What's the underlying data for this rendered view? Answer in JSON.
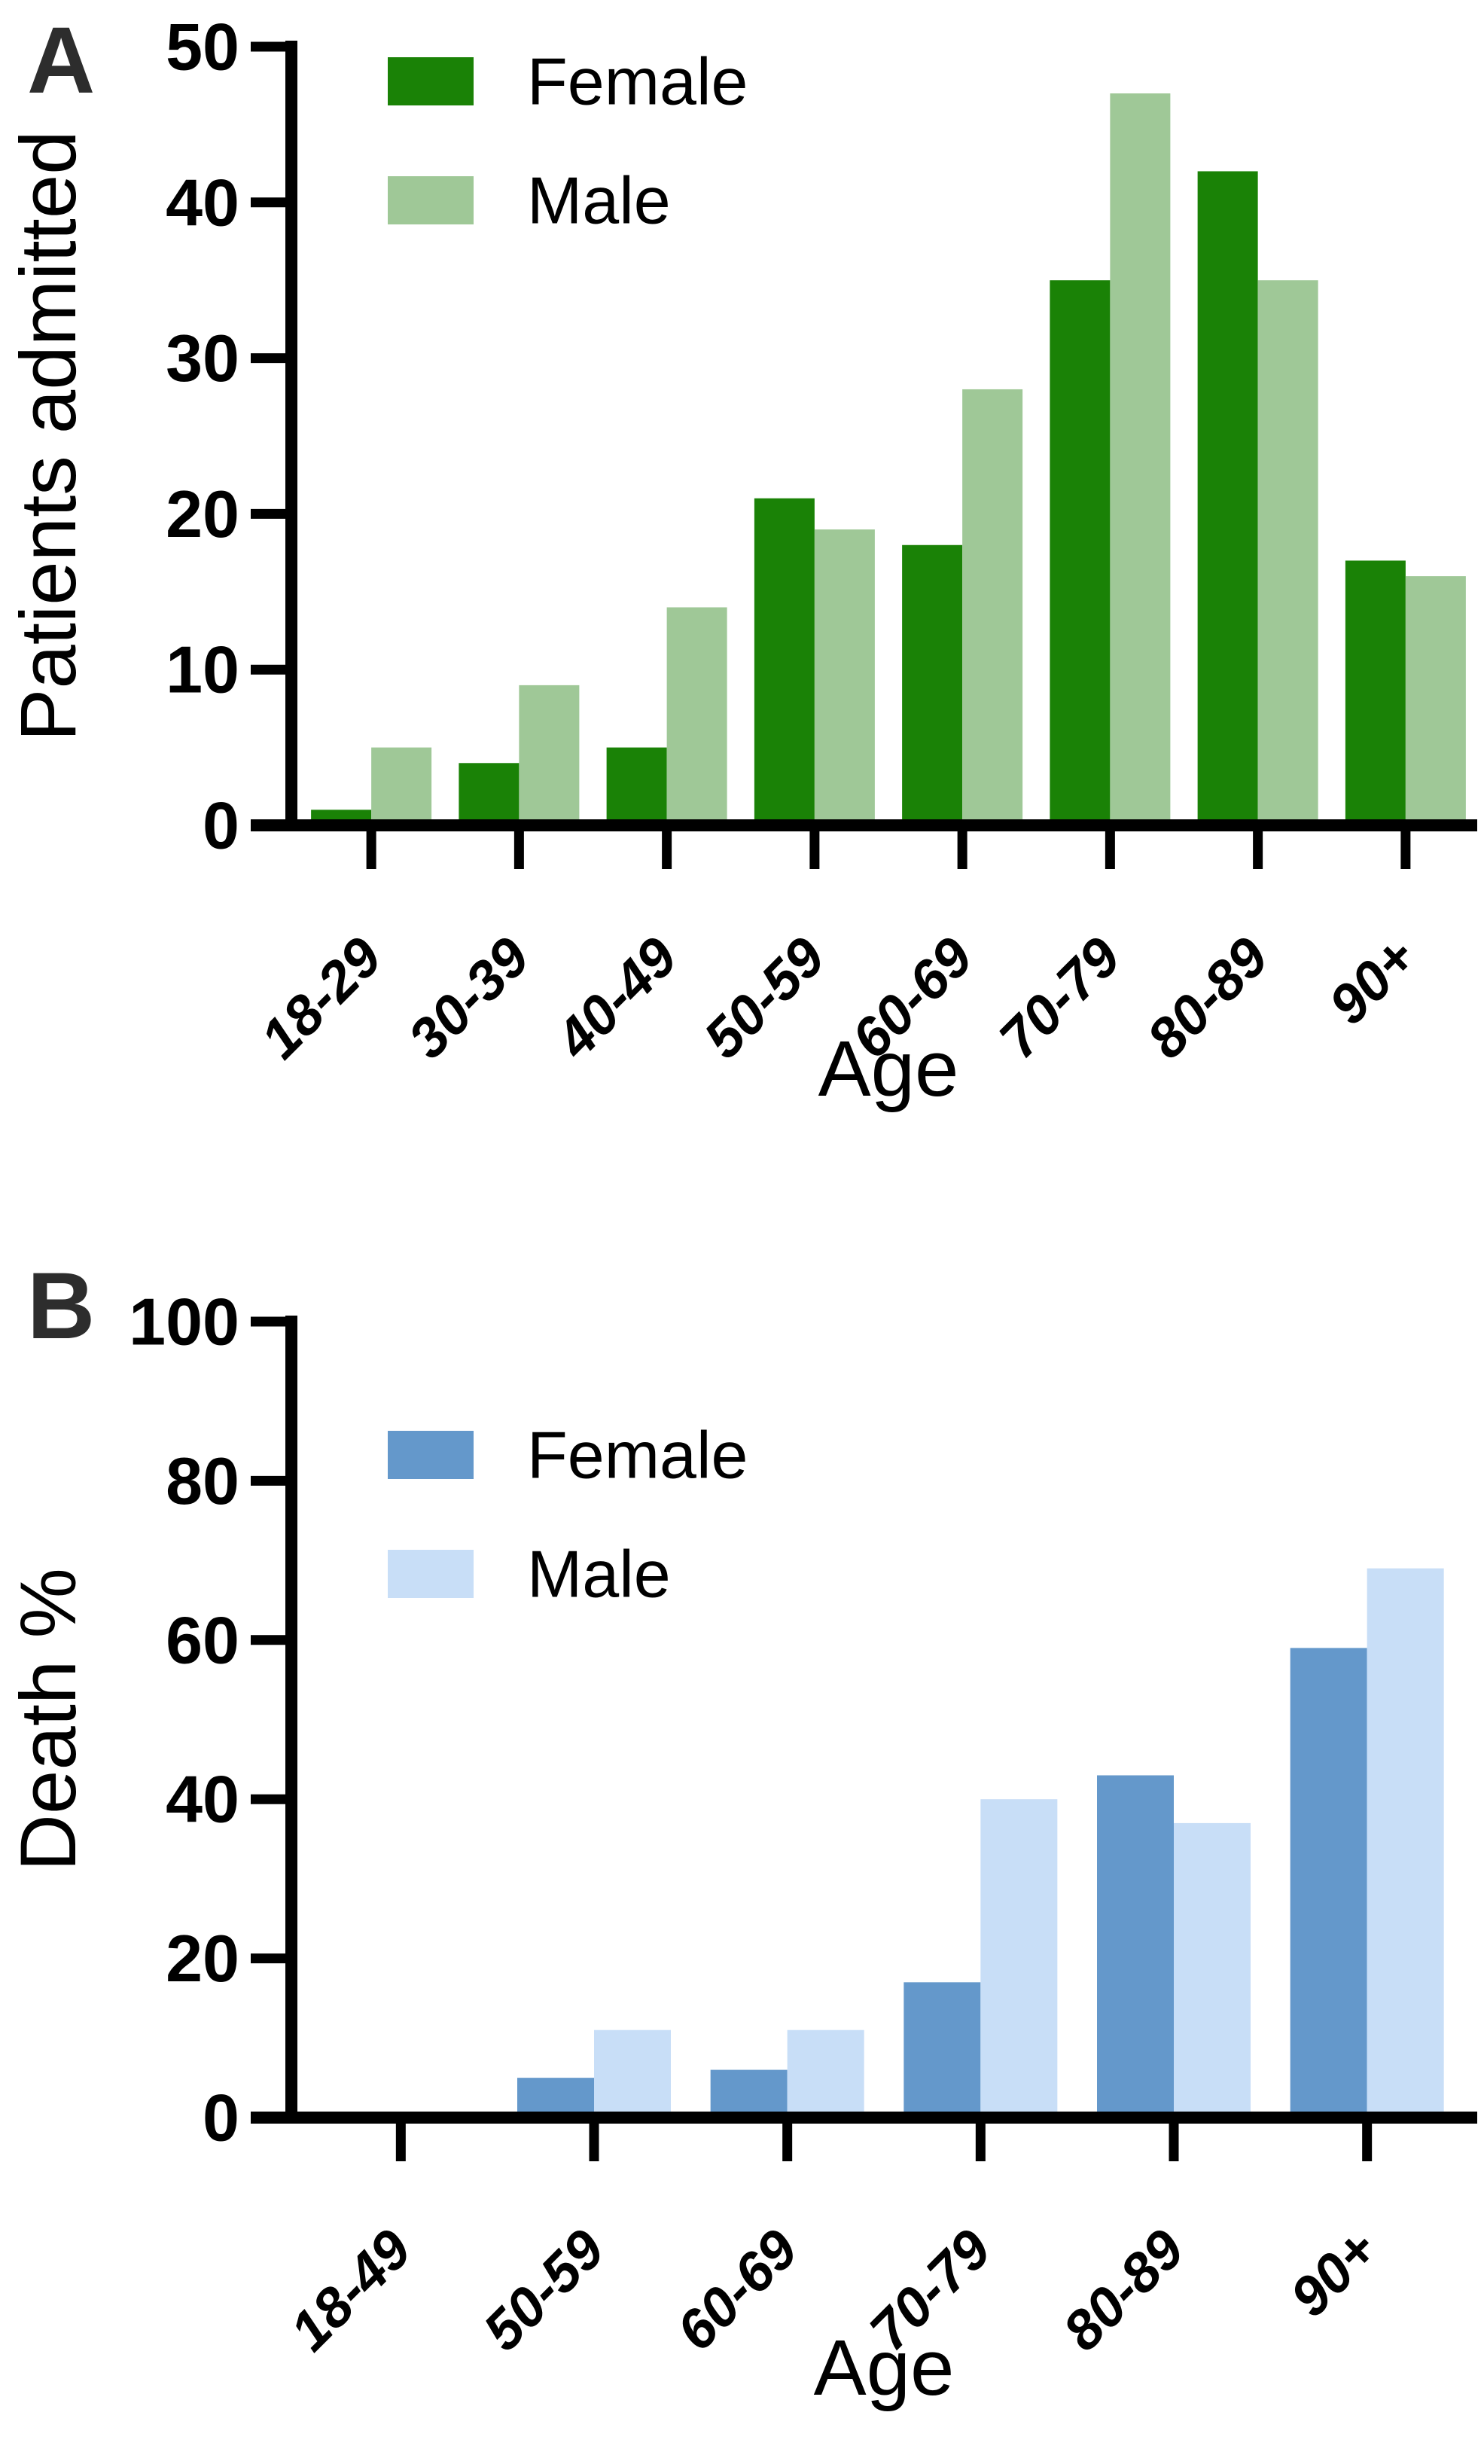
{
  "figure": {
    "background": "#ffffff",
    "panel_label_color": "#2d2d2d",
    "axis_color": "#000000"
  },
  "chart_data": [
    {
      "panel": "A",
      "type": "bar",
      "title": "",
      "xlabel": "Age",
      "ylabel": "Patients admitted",
      "categories": [
        "18-29",
        "30-39",
        "40-49",
        "50-59",
        "60-69",
        "70-79",
        "80-89",
        "90+"
      ],
      "series": [
        {
          "name": "Female",
          "color": "#1a8206",
          "values": [
            1,
            4,
            5,
            21,
            18,
            35,
            42,
            17
          ]
        },
        {
          "name": "Male",
          "color": "#9fc897",
          "values": [
            5,
            9,
            14,
            19,
            28,
            47,
            35,
            16
          ]
        }
      ],
      "ylim": [
        0,
        50
      ],
      "ytick_step": 10,
      "yticks": [
        0,
        10,
        20,
        30,
        40,
        50
      ],
      "grid": false,
      "legend_position": "top-left",
      "legend": [
        {
          "label": "Female",
          "color": "#1a8206"
        },
        {
          "label": "Male",
          "color": "#9fc897"
        }
      ]
    },
    {
      "panel": "B",
      "type": "bar",
      "title": "",
      "xlabel": "Age",
      "ylabel": "Death %",
      "categories": [
        "18-49",
        "50-59",
        "60-69",
        "70-79",
        "80-89",
        "90+"
      ],
      "series": [
        {
          "name": "Female",
          "color": "#6498cb",
          "values": [
            0,
            5,
            6,
            17,
            43,
            59
          ]
        },
        {
          "name": "Male",
          "color": "#c8def7",
          "values": [
            0,
            11,
            11,
            40,
            37,
            69
          ]
        }
      ],
      "ylim": [
        0,
        100
      ],
      "ytick_step": 20,
      "yticks": [
        0,
        20,
        40,
        60,
        80,
        100
      ],
      "grid": false,
      "legend_position": "top-left",
      "legend": [
        {
          "label": "Female",
          "color": "#6498cb"
        },
        {
          "label": "Male",
          "color": "#c8def7"
        }
      ]
    }
  ]
}
